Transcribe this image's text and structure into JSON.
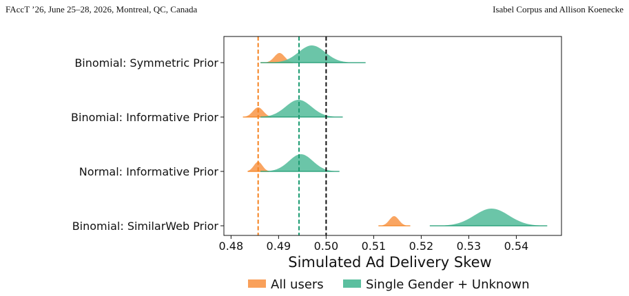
{
  "header": {
    "left": "FAccT ’26, June 25–28, 2026, Montreal, QC, Canada",
    "right": "Isabel Corpus and Allison Koenecke"
  },
  "chart_data": {
    "type": "ridgeline-density",
    "xlabel": "Simulated Ad Delivery Skew",
    "xlim": [
      0.4785,
      0.5495
    ],
    "xticks": [
      0.48,
      0.49,
      0.5,
      0.51,
      0.52,
      0.53,
      0.54
    ],
    "xtick_labels": [
      "0.48",
      "0.49",
      "0.50",
      "0.51",
      "0.52",
      "0.53",
      "0.54"
    ],
    "categories": [
      "Binomial: Symmetric Prior",
      "Binomial: Informative Prior",
      "Normal: Informative Prior",
      "Binomial: SimilarWeb Prior"
    ],
    "series": [
      {
        "name": "All users",
        "color": "#f9a05a",
        "line_color": "#f5821f",
        "distributions": [
          {
            "mode": 0.4902,
            "sd": 0.0011,
            "min": 0.4862,
            "max": 0.493
          },
          {
            "mode": 0.4857,
            "sd": 0.0011,
            "min": 0.4825,
            "max": 0.4885
          },
          {
            "mode": 0.4857,
            "sd": 0.0009,
            "min": 0.4835,
            "max": 0.488
          },
          {
            "mode": 0.5143,
            "sd": 0.001,
            "min": 0.511,
            "max": 0.5177
          }
        ]
      },
      {
        "name": "Single Gender + Unknown",
        "color": "#5bbf9f",
        "line_color": "#1a9b70",
        "distributions": [
          {
            "mode": 0.497,
            "sd": 0.0028,
            "min": 0.4862,
            "max": 0.5083
          },
          {
            "mode": 0.4942,
            "sd": 0.0027,
            "min": 0.4862,
            "max": 0.5035
          },
          {
            "mode": 0.4947,
            "sd": 0.0025,
            "min": 0.4862,
            "max": 0.5028
          },
          {
            "mode": 0.5348,
            "sd": 0.0036,
            "min": 0.5218,
            "max": 0.5465
          }
        ]
      }
    ],
    "reference_lines": [
      {
        "x": 0.4857,
        "color": "#f5821f",
        "style": "dashed"
      },
      {
        "x": 0.4943,
        "color": "#1a9b70",
        "style": "dashed"
      },
      {
        "x": 0.5,
        "color": "#111111",
        "style": "dashed"
      }
    ],
    "legend": {
      "placement": "bottom-center",
      "entries": [
        "All users",
        "Single Gender + Unknown"
      ]
    },
    "grid": false
  }
}
